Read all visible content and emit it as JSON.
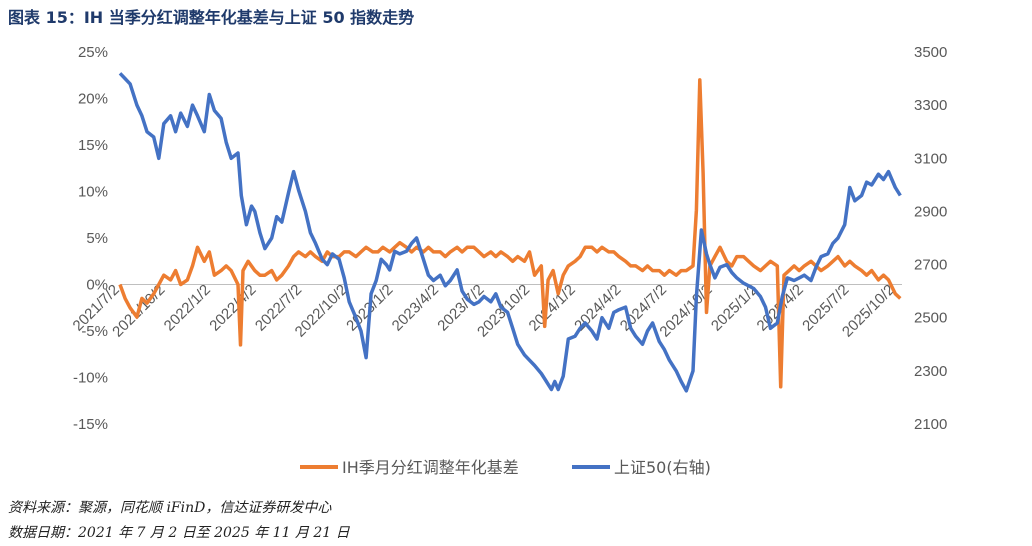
{
  "title": "图表 15：IH 当季分红调整年化基差与上证 50 指数走势",
  "source_line": "资料来源：聚源，同花顺 iFinD，信达证券研发中心",
  "date_line": "数据日期：2021 年 7 月 2 日至 2025 年 11 月 21 日",
  "colors": {
    "basis": "#ED7D31",
    "index": "#4472C4"
  },
  "chart_data": {
    "type": "line",
    "x_ticks": [
      "2021/7/2",
      "2021/10/2",
      "2022/1/2",
      "2022/4/2",
      "2022/7/2",
      "2022/10/2",
      "2023/1/2",
      "2023/4/2",
      "2023/7/2",
      "2023/10/2",
      "2024/1/2",
      "2024/4/2",
      "2024/7/2",
      "2024/10/2",
      "2025/1/2",
      "2025/4/2",
      "2025/7/2",
      "2025/10/2"
    ],
    "y_left": {
      "ylim": [
        -15,
        25
      ],
      "ticks": [
        "-15%",
        "-10%",
        "-5%",
        "0%",
        "5%",
        "10%",
        "15%",
        "20%",
        "25%"
      ]
    },
    "y_right": {
      "ylim": [
        2100,
        3500
      ],
      "ticks": [
        "2100",
        "2300",
        "2500",
        "2700",
        "2900",
        "3100",
        "3300",
        "3500"
      ]
    },
    "legend_placement": "bottom",
    "grid": false,
    "series": [
      {
        "name": "IH季月分红调整年化基差",
        "axis": "left",
        "points": [
          [
            0,
            0.0
          ],
          [
            0.3,
            -1.5
          ],
          [
            0.6,
            -2.5
          ],
          [
            1,
            -3.5
          ],
          [
            1.3,
            -1.5
          ],
          [
            1.6,
            -2.0
          ],
          [
            2,
            -1.0
          ],
          [
            2.3,
            0.0
          ],
          [
            2.6,
            1.0
          ],
          [
            3,
            0.5
          ],
          [
            3.3,
            1.5
          ],
          [
            3.6,
            0.0
          ],
          [
            4,
            0.5
          ],
          [
            4.3,
            2.0
          ],
          [
            4.6,
            4.0
          ],
          [
            5,
            2.5
          ],
          [
            5.3,
            3.5
          ],
          [
            5.6,
            1.0
          ],
          [
            6,
            1.5
          ],
          [
            6.3,
            2.0
          ],
          [
            6.6,
            1.5
          ],
          [
            7,
            0.0
          ],
          [
            7.15,
            -6.5
          ],
          [
            7.3,
            1.5
          ],
          [
            7.6,
            2.5
          ],
          [
            8,
            1.5
          ],
          [
            8.3,
            1.0
          ],
          [
            8.6,
            1.0
          ],
          [
            9,
            1.5
          ],
          [
            9.3,
            0.5
          ],
          [
            9.6,
            1.0
          ],
          [
            10,
            2.0
          ],
          [
            10.3,
            3.0
          ],
          [
            10.6,
            3.5
          ],
          [
            11,
            3.0
          ],
          [
            11.3,
            3.5
          ],
          [
            11.6,
            3.0
          ],
          [
            12,
            2.5
          ],
          [
            12.3,
            3.5
          ],
          [
            12.6,
            3.0
          ],
          [
            13,
            3.0
          ],
          [
            13.3,
            3.5
          ],
          [
            13.6,
            3.5
          ],
          [
            14,
            3.0
          ],
          [
            14.3,
            3.5
          ],
          [
            14.6,
            4.0
          ],
          [
            15,
            3.5
          ],
          [
            15.3,
            3.5
          ],
          [
            15.6,
            4.0
          ],
          [
            16,
            3.5
          ],
          [
            16.3,
            4.0
          ],
          [
            16.6,
            4.5
          ],
          [
            17,
            4.0
          ],
          [
            17.3,
            3.5
          ],
          [
            17.6,
            4.0
          ],
          [
            18,
            3.5
          ],
          [
            18.3,
            4.0
          ],
          [
            18.6,
            3.5
          ],
          [
            19,
            3.5
          ],
          [
            19.3,
            3.0
          ],
          [
            19.6,
            3.5
          ],
          [
            20,
            4.0
          ],
          [
            20.3,
            3.5
          ],
          [
            20.6,
            4.0
          ],
          [
            21,
            4.0
          ],
          [
            21.3,
            3.5
          ],
          [
            21.6,
            3.0
          ],
          [
            22,
            3.5
          ],
          [
            22.3,
            3.0
          ],
          [
            22.6,
            3.5
          ],
          [
            23,
            3.0
          ],
          [
            23.3,
            2.5
          ],
          [
            23.6,
            3.0
          ],
          [
            24,
            2.5
          ],
          [
            24.3,
            3.5
          ],
          [
            24.6,
            1.0
          ],
          [
            25,
            2.0
          ],
          [
            25.2,
            -4.5
          ],
          [
            25.4,
            0.5
          ],
          [
            25.7,
            1.5
          ],
          [
            26,
            -1.0
          ],
          [
            26.3,
            1.0
          ],
          [
            26.6,
            2.0
          ],
          [
            27,
            2.5
          ],
          [
            27.3,
            3.0
          ],
          [
            27.6,
            4.0
          ],
          [
            28,
            4.0
          ],
          [
            28.3,
            3.5
          ],
          [
            28.6,
            4.0
          ],
          [
            29,
            3.5
          ],
          [
            29.3,
            3.5
          ],
          [
            29.6,
            3.0
          ],
          [
            30,
            2.5
          ],
          [
            30.3,
            2.0
          ],
          [
            30.6,
            2.0
          ],
          [
            31,
            1.5
          ],
          [
            31.3,
            2.0
          ],
          [
            31.6,
            1.5
          ],
          [
            32,
            1.5
          ],
          [
            32.3,
            1.0
          ],
          [
            32.6,
            1.5
          ],
          [
            33,
            1.0
          ],
          [
            33.3,
            1.5
          ],
          [
            33.6,
            1.5
          ],
          [
            34,
            2.0
          ],
          [
            34.2,
            8.0
          ],
          [
            34.4,
            22.0
          ],
          [
            34.6,
            12.0
          ],
          [
            34.8,
            -3.0
          ],
          [
            35,
            2.0
          ],
          [
            35.3,
            3.0
          ],
          [
            35.6,
            4.0
          ],
          [
            36,
            2.5
          ],
          [
            36.3,
            2.0
          ],
          [
            36.6,
            3.0
          ],
          [
            37,
            3.0
          ],
          [
            37.3,
            2.5
          ],
          [
            37.6,
            2.0
          ],
          [
            38,
            1.5
          ],
          [
            38.3,
            2.0
          ],
          [
            38.6,
            2.5
          ],
          [
            39,
            2.0
          ],
          [
            39.2,
            -11.0
          ],
          [
            39.4,
            1.0
          ],
          [
            39.7,
            1.5
          ],
          [
            40,
            2.0
          ],
          [
            40.3,
            1.5
          ],
          [
            40.6,
            2.0
          ],
          [
            41,
            2.5
          ],
          [
            41.3,
            2.0
          ],
          [
            41.6,
            1.5
          ],
          [
            42,
            2.0
          ],
          [
            42.3,
            2.5
          ],
          [
            42.6,
            3.0
          ],
          [
            43,
            2.0
          ],
          [
            43.3,
            2.5
          ],
          [
            43.6,
            2.0
          ],
          [
            44,
            1.5
          ],
          [
            44.3,
            1.0
          ],
          [
            44.6,
            1.5
          ],
          [
            45,
            0.5
          ],
          [
            45.3,
            1.0
          ],
          [
            45.6,
            0.5
          ],
          [
            46,
            -1.0
          ],
          [
            46.3,
            -1.5
          ]
        ]
      },
      {
        "name": "上证50(右轴)",
        "axis": "right",
        "points": [
          [
            0,
            3420
          ],
          [
            0.3,
            3400
          ],
          [
            0.6,
            3380
          ],
          [
            1,
            3300
          ],
          [
            1.3,
            3260
          ],
          [
            1.6,
            3200
          ],
          [
            2,
            3180
          ],
          [
            2.3,
            3100
          ],
          [
            2.6,
            3230
          ],
          [
            3,
            3260
          ],
          [
            3.3,
            3200
          ],
          [
            3.6,
            3270
          ],
          [
            4,
            3220
          ],
          [
            4.3,
            3300
          ],
          [
            4.6,
            3260
          ],
          [
            5,
            3200
          ],
          [
            5.3,
            3340
          ],
          [
            5.6,
            3280
          ],
          [
            6,
            3250
          ],
          [
            6.3,
            3160
          ],
          [
            6.6,
            3100
          ],
          [
            7,
            3120
          ],
          [
            7.2,
            2960
          ],
          [
            7.5,
            2850
          ],
          [
            7.8,
            2920
          ],
          [
            8,
            2900
          ],
          [
            8.3,
            2820
          ],
          [
            8.6,
            2760
          ],
          [
            9,
            2800
          ],
          [
            9.3,
            2880
          ],
          [
            9.6,
            2860
          ],
          [
            10,
            2970
          ],
          [
            10.3,
            3050
          ],
          [
            10.6,
            2980
          ],
          [
            11,
            2900
          ],
          [
            11.3,
            2820
          ],
          [
            11.6,
            2780
          ],
          [
            12,
            2720
          ],
          [
            12.3,
            2700
          ],
          [
            12.6,
            2740
          ],
          [
            13,
            2720
          ],
          [
            13.3,
            2650
          ],
          [
            13.6,
            2560
          ],
          [
            14,
            2500
          ],
          [
            14.3,
            2450
          ],
          [
            14.6,
            2350
          ],
          [
            14.9,
            2590
          ],
          [
            15.2,
            2640
          ],
          [
            15.5,
            2720
          ],
          [
            15.8,
            2700
          ],
          [
            16,
            2680
          ],
          [
            16.3,
            2750
          ],
          [
            16.6,
            2740
          ],
          [
            17,
            2750
          ],
          [
            17.3,
            2780
          ],
          [
            17.6,
            2800
          ],
          [
            18,
            2720
          ],
          [
            18.3,
            2660
          ],
          [
            18.6,
            2640
          ],
          [
            19,
            2660
          ],
          [
            19.3,
            2620
          ],
          [
            19.6,
            2640
          ],
          [
            20,
            2680
          ],
          [
            20.3,
            2600
          ],
          [
            20.6,
            2570
          ],
          [
            21,
            2550
          ],
          [
            21.3,
            2560
          ],
          [
            21.6,
            2580
          ],
          [
            22,
            2560
          ],
          [
            22.3,
            2590
          ],
          [
            22.6,
            2540
          ],
          [
            23,
            2520
          ],
          [
            23.3,
            2460
          ],
          [
            23.6,
            2400
          ],
          [
            24,
            2360
          ],
          [
            24.3,
            2340
          ],
          [
            24.6,
            2320
          ],
          [
            25,
            2290
          ],
          [
            25.3,
            2260
          ],
          [
            25.6,
            2230
          ],
          [
            25.8,
            2260
          ],
          [
            26,
            2230
          ],
          [
            26.3,
            2280
          ],
          [
            26.6,
            2420
          ],
          [
            27,
            2430
          ],
          [
            27.3,
            2460
          ],
          [
            27.6,
            2480
          ],
          [
            28,
            2450
          ],
          [
            28.3,
            2420
          ],
          [
            28.6,
            2500
          ],
          [
            29,
            2460
          ],
          [
            29.3,
            2520
          ],
          [
            29.6,
            2530
          ],
          [
            30,
            2540
          ],
          [
            30.3,
            2460
          ],
          [
            30.6,
            2430
          ],
          [
            31,
            2400
          ],
          [
            31.3,
            2450
          ],
          [
            31.6,
            2480
          ],
          [
            32,
            2410
          ],
          [
            32.3,
            2380
          ],
          [
            32.6,
            2340
          ],
          [
            33,
            2300
          ],
          [
            33.3,
            2260
          ],
          [
            33.6,
            2225
          ],
          [
            34,
            2300
          ],
          [
            34.2,
            2580
          ],
          [
            34.5,
            2830
          ],
          [
            34.8,
            2740
          ],
          [
            35,
            2700
          ],
          [
            35.3,
            2650
          ],
          [
            35.6,
            2690
          ],
          [
            36,
            2700
          ],
          [
            36.3,
            2670
          ],
          [
            36.6,
            2650
          ],
          [
            37,
            2630
          ],
          [
            37.3,
            2620
          ],
          [
            37.6,
            2610
          ],
          [
            38,
            2580
          ],
          [
            38.3,
            2540
          ],
          [
            38.6,
            2460
          ],
          [
            39,
            2480
          ],
          [
            39.3,
            2580
          ],
          [
            39.6,
            2650
          ],
          [
            40,
            2640
          ],
          [
            40.3,
            2650
          ],
          [
            40.6,
            2660
          ],
          [
            41,
            2640
          ],
          [
            41.3,
            2690
          ],
          [
            41.6,
            2730
          ],
          [
            42,
            2740
          ],
          [
            42.3,
            2780
          ],
          [
            42.6,
            2800
          ],
          [
            43,
            2850
          ],
          [
            43.3,
            2990
          ],
          [
            43.6,
            2940
          ],
          [
            44,
            2960
          ],
          [
            44.3,
            3010
          ],
          [
            44.6,
            3000
          ],
          [
            45,
            3040
          ],
          [
            45.3,
            3020
          ],
          [
            45.6,
            3050
          ],
          [
            46,
            2990
          ],
          [
            46.3,
            2960
          ]
        ]
      }
    ]
  }
}
